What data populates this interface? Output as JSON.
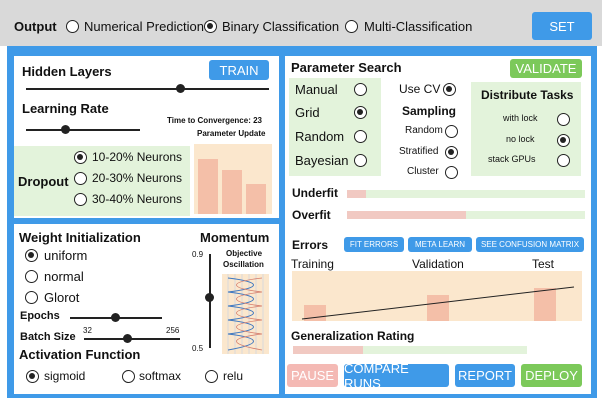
{
  "top": {
    "output_label": "Output",
    "options": [
      {
        "label": "Numerical Prediction",
        "selected": false
      },
      {
        "label": "Binary Classification",
        "selected": true
      },
      {
        "label": "Multi-Classification",
        "selected": false
      }
    ],
    "set_label": "SET"
  },
  "hidden": {
    "title": "Hidden Layers",
    "train_label": "TRAIN",
    "learning_rate_label": "Learning Rate",
    "ttc_label": "Time to Convergence:",
    "ttc_value": "23",
    "param_update_label": "Parameter Update",
    "dropout_label": "Dropout",
    "dropout_options": [
      {
        "label": "10-20% Neurons",
        "selected": true
      },
      {
        "label": "20-30% Neurons",
        "selected": false
      },
      {
        "label": "30-40% Neurons",
        "selected": false
      }
    ],
    "param_update_bars": [
      0.78,
      0.63,
      0.43
    ]
  },
  "weight": {
    "title": "Weight Initialization",
    "options": [
      {
        "label": "uniform",
        "selected": true
      },
      {
        "label": "normal",
        "selected": false
      },
      {
        "label": "Glorot",
        "selected": false
      }
    ],
    "epochs_label": "Epochs",
    "batch_label": "Batch Size",
    "batch_min": "32",
    "batch_max": "256",
    "momentum_title": "Momentum",
    "momentum_max": "0.9",
    "momentum_min": "0.5",
    "objective_label_1": "Objective",
    "objective_label_2": "Oscillation",
    "activation_title": "Activation Function",
    "activation_options": [
      {
        "label": "sigmoid",
        "selected": true
      },
      {
        "label": "softmax",
        "selected": false
      },
      {
        "label": "relu",
        "selected": false
      }
    ]
  },
  "search": {
    "title": "Parameter Search",
    "validate_label": "VALIDATE",
    "methods": [
      {
        "label": "Manual",
        "selected": false
      },
      {
        "label": "Grid",
        "selected": true
      },
      {
        "label": "Random",
        "selected": false
      },
      {
        "label": "Bayesian",
        "selected": false
      }
    ],
    "use_cv_label": "Use CV",
    "use_cv_selected": true,
    "sampling_title": "Sampling",
    "sampling_options": [
      {
        "label": "Random",
        "selected": false
      },
      {
        "label": "Stratified",
        "selected": true
      },
      {
        "label": "Cluster",
        "selected": false
      }
    ],
    "distribute_title": "Distribute Tasks",
    "distribute_options": [
      {
        "label": "with lock",
        "selected": false
      },
      {
        "label": "no lock",
        "selected": true
      },
      {
        "label": "stack GPUs",
        "selected": false
      }
    ],
    "underfit_label": "Underfit",
    "underfit_value": 0.08,
    "overfit_label": "Overfit",
    "overfit_value": 0.5,
    "errors_title": "Errors",
    "fit_errors_label": "FIT ERRORS",
    "meta_learn_label": "META LEARN",
    "confusion_label": "SEE CONFUSION MATRIX",
    "error_columns": [
      "Training",
      "Validation",
      "Test"
    ],
    "error_values": [
      0.32,
      0.52,
      0.66
    ],
    "generalization_label": "Generalization Rating",
    "generalization_value": 0.3
  },
  "bottom": {
    "pause_label": "PAUSE",
    "compare_label": "COMPARE RUNS",
    "report_label": "REPORT",
    "deploy_label": "DEPLOY"
  },
  "colors": {
    "blue": "#3f9ae8",
    "green": "#7cc95a",
    "light_green": "#e3f3db",
    "peach": "#fbe7cd",
    "salmon": "#f4bfa8",
    "pink": "#f4b9b4",
    "gray_bar": "#d9d9d9"
  }
}
